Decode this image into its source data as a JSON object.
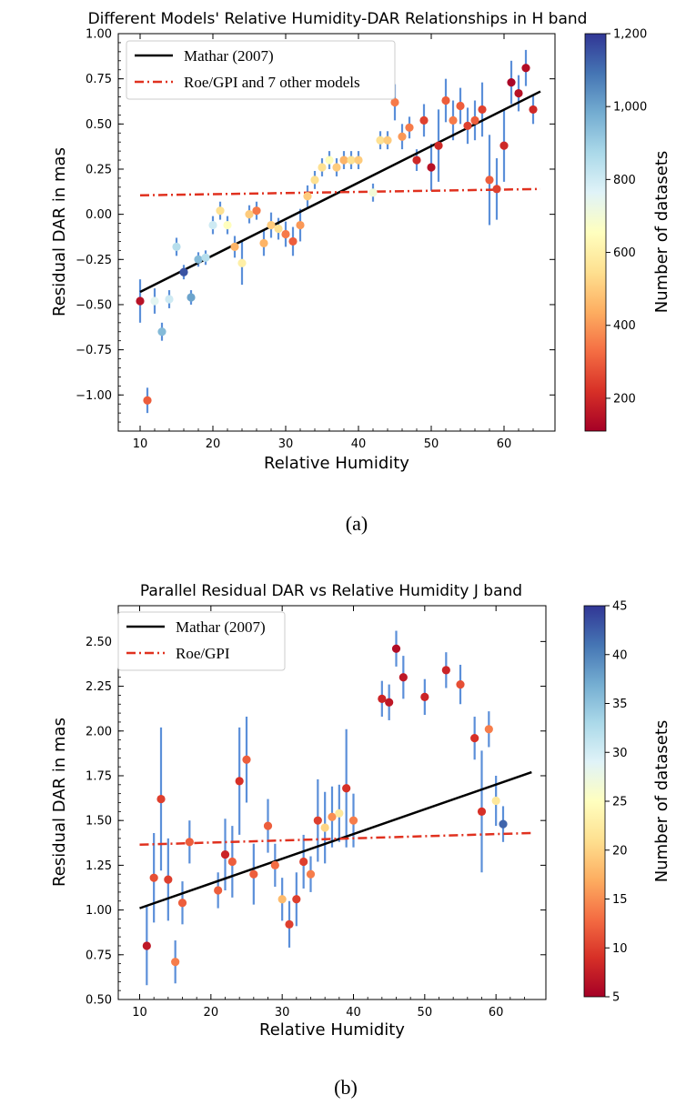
{
  "chart_data": [
    {
      "type": "scatter",
      "title": "Different Models' Relative Humidity-DAR Relationships in H band",
      "xlabel": "Relative Humidity",
      "ylabel": "Residual DAR in mas",
      "xlim": [
        7,
        67
      ],
      "ylim": [
        -1.2,
        1.0
      ],
      "xticks": [
        10,
        20,
        30,
        40,
        50,
        60
      ],
      "yticks": [
        -1.0,
        -0.75,
        -0.5,
        -0.25,
        0.0,
        0.25,
        0.5,
        0.75,
        1.0
      ],
      "ytick_labels": [
        "−1.00",
        "−0.75",
        "−0.50",
        "−0.25",
        "0.00",
        "0.25",
        "0.50",
        "0.75",
        "1.00"
      ],
      "legend_position": "top-left",
      "lines": [
        {
          "name": "Mathar (2007)",
          "style": "solid",
          "color": "#000000",
          "x": [
            10,
            65
          ],
          "y": [
            -0.43,
            0.68
          ]
        },
        {
          "name": "Roe/GPI and 7 other models",
          "style": "dashdot",
          "color": "#e0311f",
          "x": [
            10,
            65
          ],
          "y": [
            0.105,
            0.14
          ]
        }
      ],
      "colorbar": {
        "label": "Number of datasets",
        "min": 110,
        "max": 1200,
        "ticks": [
          200,
          400,
          600,
          800,
          1000,
          1200
        ],
        "tick_labels": [
          "200",
          "400",
          "600",
          "800",
          "1,000",
          "1,200"
        ]
      },
      "points": [
        {
          "x": 10,
          "y": -0.48,
          "err": 0.12,
          "c": 150
        },
        {
          "x": 11,
          "y": -1.03,
          "err": 0.07,
          "c": 300
        },
        {
          "x": 12,
          "y": -0.48,
          "err": 0.07,
          "c": 750
        },
        {
          "x": 13,
          "y": -0.65,
          "err": 0.05,
          "c": 950
        },
        {
          "x": 14,
          "y": -0.47,
          "err": 0.05,
          "c": 800
        },
        {
          "x": 15,
          "y": -0.18,
          "err": 0.05,
          "c": 850
        },
        {
          "x": 16,
          "y": -0.32,
          "err": 0.04,
          "c": 1150
        },
        {
          "x": 17,
          "y": -0.46,
          "err": 0.04,
          "c": 1000
        },
        {
          "x": 18,
          "y": -0.25,
          "err": 0.04,
          "c": 950
        },
        {
          "x": 19,
          "y": -0.24,
          "err": 0.04,
          "c": 850
        },
        {
          "x": 20,
          "y": -0.06,
          "err": 0.05,
          "c": 800
        },
        {
          "x": 21,
          "y": 0.02,
          "err": 0.05,
          "c": 550
        },
        {
          "x": 22,
          "y": -0.06,
          "err": 0.05,
          "c": 650
        },
        {
          "x": 23,
          "y": -0.18,
          "err": 0.06,
          "c": 450
        },
        {
          "x": 24,
          "y": -0.27,
          "err": 0.12,
          "c": 600
        },
        {
          "x": 25,
          "y": 0.0,
          "err": 0.05,
          "c": 500
        },
        {
          "x": 26,
          "y": 0.02,
          "err": 0.05,
          "c": 350
        },
        {
          "x": 27,
          "y": -0.16,
          "err": 0.07,
          "c": 450
        },
        {
          "x": 28,
          "y": -0.06,
          "err": 0.07,
          "c": 500
        },
        {
          "x": 29,
          "y": -0.08,
          "err": 0.06,
          "c": 550
        },
        {
          "x": 30,
          "y": -0.11,
          "err": 0.07,
          "c": 350
        },
        {
          "x": 31,
          "y": -0.15,
          "err": 0.08,
          "c": 300
        },
        {
          "x": 32,
          "y": -0.06,
          "err": 0.09,
          "c": 400
        },
        {
          "x": 33,
          "y": 0.1,
          "err": 0.06,
          "c": 500
        },
        {
          "x": 34,
          "y": 0.19,
          "err": 0.05,
          "c": 550
        },
        {
          "x": 35,
          "y": 0.26,
          "err": 0.05,
          "c": 550
        },
        {
          "x": 36,
          "y": 0.3,
          "err": 0.05,
          "c": 650
        },
        {
          "x": 37,
          "y": 0.26,
          "err": 0.05,
          "c": 500
        },
        {
          "x": 38,
          "y": 0.3,
          "err": 0.05,
          "c": 450
        },
        {
          "x": 39,
          "y": 0.3,
          "err": 0.05,
          "c": 550
        },
        {
          "x": 40,
          "y": 0.3,
          "err": 0.05,
          "c": 500
        },
        {
          "x": 42,
          "y": 0.12,
          "err": 0.05,
          "c": 700
        },
        {
          "x": 43,
          "y": 0.41,
          "err": 0.05,
          "c": 550
        },
        {
          "x": 44,
          "y": 0.41,
          "err": 0.05,
          "c": 500
        },
        {
          "x": 45,
          "y": 0.62,
          "err": 0.1,
          "c": 350
        },
        {
          "x": 46,
          "y": 0.43,
          "err": 0.07,
          "c": 400
        },
        {
          "x": 47,
          "y": 0.48,
          "err": 0.06,
          "c": 350
        },
        {
          "x": 48,
          "y": 0.3,
          "err": 0.06,
          "c": 200
        },
        {
          "x": 49,
          "y": 0.52,
          "err": 0.09,
          "c": 250
        },
        {
          "x": 50,
          "y": 0.26,
          "err": 0.13,
          "c": 150
        },
        {
          "x": 51,
          "y": 0.38,
          "err": 0.2,
          "c": 200
        },
        {
          "x": 52,
          "y": 0.63,
          "err": 0.12,
          "c": 300
        },
        {
          "x": 53,
          "y": 0.52,
          "err": 0.11,
          "c": 350
        },
        {
          "x": 54,
          "y": 0.6,
          "err": 0.1,
          "c": 300
        },
        {
          "x": 55,
          "y": 0.49,
          "err": 0.1,
          "c": 250
        },
        {
          "x": 56,
          "y": 0.52,
          "err": 0.11,
          "c": 300
        },
        {
          "x": 57,
          "y": 0.58,
          "err": 0.15,
          "c": 250
        },
        {
          "x": 58,
          "y": 0.19,
          "err": 0.25,
          "c": 300
        },
        {
          "x": 59,
          "y": 0.14,
          "err": 0.17,
          "c": 250
        },
        {
          "x": 60,
          "y": 0.38,
          "err": 0.2,
          "c": 200
        },
        {
          "x": 61,
          "y": 0.73,
          "err": 0.12,
          "c": 120
        },
        {
          "x": 62,
          "y": 0.67,
          "err": 0.1,
          "c": 150
        },
        {
          "x": 63,
          "y": 0.81,
          "err": 0.1,
          "c": 140
        },
        {
          "x": 64,
          "y": 0.58,
          "err": 0.08,
          "c": 200
        }
      ]
    },
    {
      "type": "scatter",
      "title": "Parallel Residual DAR vs Relative Humidity J band",
      "xlabel": "Relative Humidity",
      "ylabel": "Residual DAR in mas",
      "xlim": [
        7,
        67
      ],
      "ylim": [
        0.5,
        2.7
      ],
      "xticks": [
        10,
        20,
        30,
        40,
        50,
        60
      ],
      "yticks": [
        0.5,
        0.75,
        1.0,
        1.25,
        1.5,
        1.75,
        2.0,
        2.25,
        2.5
      ],
      "ytick_labels": [
        "0.50",
        "0.75",
        "1.00",
        "1.25",
        "1.50",
        "1.75",
        "2.00",
        "2.25",
        "2.50"
      ],
      "legend_position": "top-left",
      "lines": [
        {
          "name": "Mathar (2007)",
          "style": "solid",
          "color": "#000000",
          "x": [
            10,
            65
          ],
          "y": [
            1.01,
            1.77
          ]
        },
        {
          "name": "Roe/GPI",
          "style": "dashdot",
          "color": "#e0311f",
          "x": [
            10,
            65
          ],
          "y": [
            1.365,
            1.43
          ]
        }
      ],
      "colorbar": {
        "label": "Number of datasets",
        "min": 5,
        "max": 45,
        "ticks": [
          5,
          10,
          15,
          20,
          25,
          30,
          35,
          40,
          45
        ],
        "tick_labels": [
          "5",
          "10",
          "15",
          "20",
          "25",
          "30",
          "35",
          "40",
          "45"
        ]
      },
      "points": [
        {
          "x": 11,
          "y": 0.8,
          "err": 0.22,
          "c": 7
        },
        {
          "x": 12,
          "y": 1.18,
          "err": 0.25,
          "c": 11
        },
        {
          "x": 13,
          "y": 1.62,
          "err": 0.4,
          "c": 10
        },
        {
          "x": 14,
          "y": 1.17,
          "err": 0.23,
          "c": 10
        },
        {
          "x": 15,
          "y": 0.71,
          "err": 0.12,
          "c": 14
        },
        {
          "x": 16,
          "y": 1.04,
          "err": 0.12,
          "c": 12
        },
        {
          "x": 17,
          "y": 1.38,
          "err": 0.12,
          "c": 12
        },
        {
          "x": 21,
          "y": 1.11,
          "err": 0.1,
          "c": 12
        },
        {
          "x": 22,
          "y": 1.31,
          "err": 0.2,
          "c": 8
        },
        {
          "x": 23,
          "y": 1.27,
          "err": 0.2,
          "c": 12
        },
        {
          "x": 24,
          "y": 1.72,
          "err": 0.3,
          "c": 9
        },
        {
          "x": 25,
          "y": 1.84,
          "err": 0.24,
          "c": 12
        },
        {
          "x": 26,
          "y": 1.2,
          "err": 0.17,
          "c": 12
        },
        {
          "x": 28,
          "y": 1.47,
          "err": 0.15,
          "c": 12
        },
        {
          "x": 29,
          "y": 1.25,
          "err": 0.12,
          "c": 13
        },
        {
          "x": 30,
          "y": 1.06,
          "err": 0.12,
          "c": 18
        },
        {
          "x": 31,
          "y": 0.92,
          "err": 0.13,
          "c": 10
        },
        {
          "x": 32,
          "y": 1.06,
          "err": 0.15,
          "c": 10
        },
        {
          "x": 33,
          "y": 1.27,
          "err": 0.15,
          "c": 10
        },
        {
          "x": 34,
          "y": 1.2,
          "err": 0.1,
          "c": 14
        },
        {
          "x": 35,
          "y": 1.5,
          "err": 0.23,
          "c": 10
        },
        {
          "x": 36,
          "y": 1.46,
          "err": 0.2,
          "c": 20
        },
        {
          "x": 37,
          "y": 1.52,
          "err": 0.17,
          "c": 15
        },
        {
          "x": 38,
          "y": 1.54,
          "err": 0.16,
          "c": 22
        },
        {
          "x": 39,
          "y": 1.68,
          "err": 0.33,
          "c": 9
        },
        {
          "x": 40,
          "y": 1.5,
          "err": 0.15,
          "c": 14
        },
        {
          "x": 44,
          "y": 2.18,
          "err": 0.1,
          "c": 8
        },
        {
          "x": 45,
          "y": 2.16,
          "err": 0.1,
          "c": 7
        },
        {
          "x": 46,
          "y": 2.46,
          "err": 0.1,
          "c": 6
        },
        {
          "x": 47,
          "y": 2.3,
          "err": 0.12,
          "c": 7
        },
        {
          "x": 50,
          "y": 2.19,
          "err": 0.1,
          "c": 8
        },
        {
          "x": 53,
          "y": 2.34,
          "err": 0.1,
          "c": 8
        },
        {
          "x": 55,
          "y": 2.26,
          "err": 0.11,
          "c": 11
        },
        {
          "x": 57,
          "y": 1.96,
          "err": 0.12,
          "c": 9
        },
        {
          "x": 58,
          "y": 1.55,
          "err": 0.34,
          "c": 9
        },
        {
          "x": 59,
          "y": 2.01,
          "err": 0.1,
          "c": 14
        },
        {
          "x": 60,
          "y": 1.61,
          "err": 0.14,
          "c": 22
        },
        {
          "x": 61,
          "y": 1.48,
          "err": 0.1,
          "c": 42
        }
      ]
    }
  ],
  "captions": {
    "a": "(a)",
    "b": "(b)"
  }
}
